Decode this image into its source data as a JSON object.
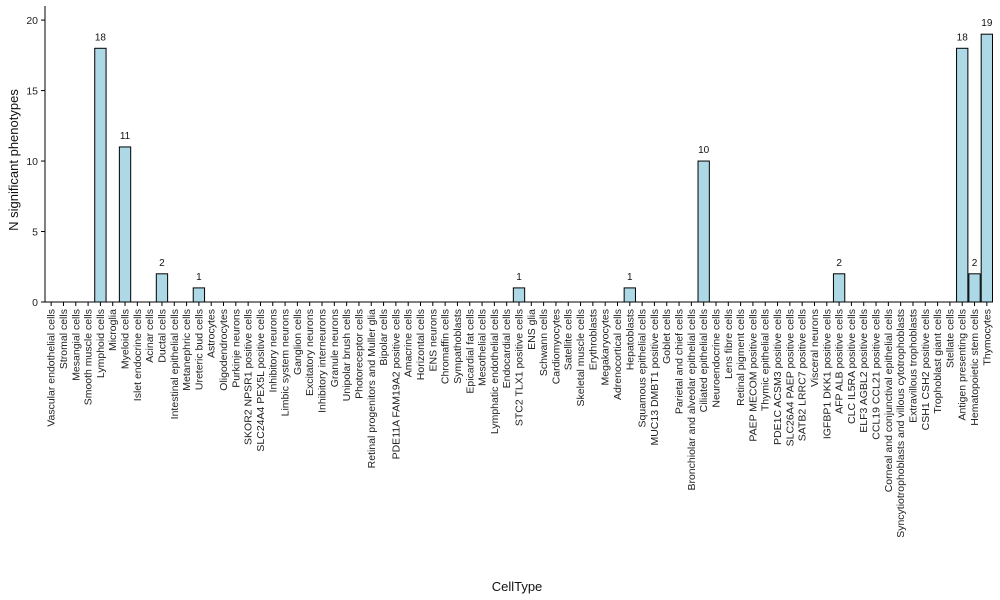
{
  "chart_data": {
    "type": "bar",
    "xlabel": "CellType",
    "ylabel": "N significant phenotypes",
    "ylim": [
      0,
      21
    ],
    "yticks": [
      0,
      5,
      10,
      15,
      20
    ],
    "bar_color": "#add8e6",
    "bar_stroke": "#000000",
    "grid": false,
    "categories": [
      "Vascular endothelial cells",
      "Stromal cells",
      "Mesangial cells",
      "Smooth muscle cells",
      "Lymphoid cells",
      "Microglia",
      "Myeloid cells",
      "Islet endocrine cells",
      "Acinar cells",
      "Ductal cells",
      "Intestinal epithelial cells",
      "Metanephric cells",
      "Ureteric bud cells",
      "Astrocytes",
      "Oligodendrocytes",
      "Purkinje neurons",
      "SKOR2 NPSR1 positive cells",
      "SLC24A4 PEX5L positive cells",
      "Inhibitory neurons",
      "Limbic system neurons",
      "Ganglion cells",
      "Excitatory neurons",
      "Inhibitory interneurons",
      "Granule neurons",
      "Unipolar brush cells",
      "Photoreceptor cells",
      "Retinal progenitors and Muller glia",
      "Bipolar cells",
      "PDE11A FAM19A2 positive cells",
      "Amacrine cells",
      "Horizontal cells",
      "ENS neurons",
      "Chromaffin cells",
      "Sympathoblasts",
      "Epicardial fat cells",
      "Mesothelial cells",
      "Lymphatic endothelial cells",
      "Endocardial cells",
      "STC2 TLX1 positive cells",
      "ENS glia",
      "Schwann cells",
      "Cardiomyocytes",
      "Satellite cells",
      "Skeletal muscle cells",
      "Erythroblasts",
      "Megakaryocytes",
      "Adrenocortical cells",
      "Hepatoblasts",
      "Squamous epithelial cells",
      "MUC13 DMBT1 positive cells",
      "Goblet cells",
      "Parietal and chief cells",
      "Bronchiolar and alveolar epithelial cells",
      "Ciliated epithelial cells",
      "Neuroendocrine cells",
      "Lens fibre cells",
      "Retinal pigment cells",
      "PAEP MECOM positive cells",
      "Thymic epithelial cells",
      "PDE1C ACSM3 positive cells",
      "SLC26A4 PAEP positive cells",
      "SATB2 LRRC7 positive cells",
      "Visceral neurons",
      "IGFBP1 DKK1 positive cells",
      "AFP ALB positive cells",
      "CLC IL5RA positive cells",
      "ELF3 AGBL2 positive cells",
      "CCL19 CCL21 positive cells",
      "Corneal and conjunctival epithelial cells",
      "Syncytiotrophoblasts and villous cytotrophoblasts",
      "Extravillous trophoblasts",
      "CSH1 CSH2 positive cells",
      "Trophoblast giant cells",
      "Stellate cells",
      "Antigen presenting cells",
      "Hematopoietic stem cells",
      "Thymocytes"
    ],
    "values": [
      0,
      0,
      0,
      0,
      18,
      0,
      11,
      0,
      0,
      2,
      0,
      0,
      1,
      0,
      0,
      0,
      0,
      0,
      0,
      0,
      0,
      0,
      0,
      0,
      0,
      0,
      0,
      0,
      0,
      0,
      0,
      0,
      0,
      0,
      0,
      0,
      0,
      0,
      1,
      0,
      0,
      0,
      0,
      0,
      0,
      0,
      0,
      1,
      0,
      0,
      0,
      0,
      0,
      10,
      0,
      0,
      0,
      0,
      0,
      0,
      0,
      0,
      0,
      0,
      2,
      0,
      0,
      0,
      0,
      0,
      0,
      0,
      0,
      0,
      18,
      2,
      19
    ],
    "data_labels": [
      "",
      "",
      "",
      "",
      "18",
      "",
      "11",
      "",
      "",
      "2",
      "",
      "",
      "1",
      "",
      "",
      "",
      "",
      "",
      "",
      "",
      "",
      "",
      "",
      "",
      "",
      "",
      "",
      "",
      "",
      "",
      "",
      "",
      "",
      "",
      "",
      "",
      "",
      "",
      "1",
      "",
      "",
      "",
      "",
      "",
      "",
      "",
      "",
      "1",
      "",
      "",
      "",
      "",
      "",
      "10",
      "",
      "",
      "",
      "",
      "",
      "",
      "",
      "",
      "",
      "",
      "2",
      "",
      "",
      "",
      "",
      "",
      "",
      "",
      "",
      "",
      "18",
      "2",
      "19"
    ]
  }
}
